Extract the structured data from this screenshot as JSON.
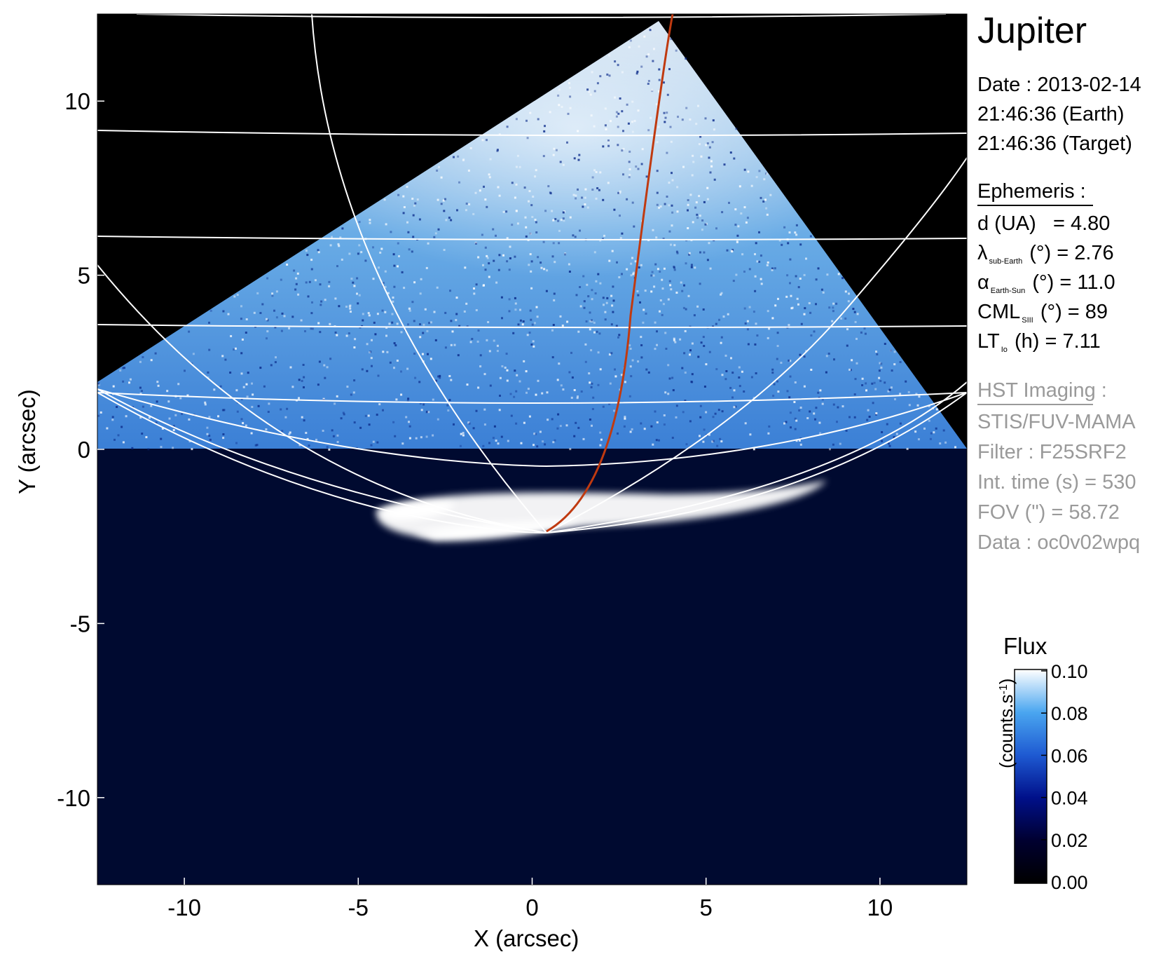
{
  "chart_data": {
    "type": "heatmap",
    "xlabel": "X (arcsec)",
    "ylabel": "Y (arcsec)",
    "xlim": [
      -12.5,
      12.5
    ],
    "ylim": [
      -12.5,
      12.5
    ],
    "xticks": [
      "-10",
      "-5",
      "0",
      "5",
      "10"
    ],
    "yticks": [
      "10",
      "5",
      "0",
      "-5",
      "-10"
    ],
    "colorbar": {
      "title": "Flux",
      "label": "(counts.s",
      "label_sup": "-1",
      "label_end": ")",
      "range": [
        0.0,
        0.1
      ],
      "ticks": [
        "0.10",
        "0.08",
        "0.06",
        "0.04",
        "0.02",
        "0.00"
      ],
      "colors": [
        "#000000",
        "#000030",
        "#00108a",
        "#1e5ad2",
        "#4aa6f0",
        "#ffffff"
      ]
    },
    "annotations": {
      "target": "Jupiter",
      "date_label": "Date : 2013-02-14",
      "time_earth": "21:46:36 (Earth)",
      "time_target": "21:46:36 (Target)",
      "ephemeris_header": "Ephemeris :",
      "ephemeris": [
        {
          "name": "d (UA)",
          "value": "= 4.80"
        },
        {
          "name": "λ",
          "sub": "sub-Earth",
          "unit": "(°)",
          "value": "= 2.76"
        },
        {
          "name": "α",
          "sub": "Earth-Sun",
          "unit": "(°)",
          "value": "= 11.0"
        },
        {
          "name": "CML",
          "sub": "SIII",
          "unit": "(°)",
          "value": "= 89"
        },
        {
          "name": "LT",
          "sub": "Io",
          "unit": "(h)",
          "value": "= 7.11"
        }
      ],
      "hst_header": "HST Imaging :",
      "hst": [
        "STIS/FUV-MAMA",
        "Filter : F25SRF2",
        "Int. time (s) = 530",
        "FOV (\") = 58.72",
        "Data : oc0v02wpq"
      ]
    },
    "latitude_lines_y": [
      12.3,
      9.2,
      6.2,
      3.6,
      1.2,
      -0.4
    ],
    "meridian_color": "#c03a10",
    "grid_color": "#ffffff"
  }
}
